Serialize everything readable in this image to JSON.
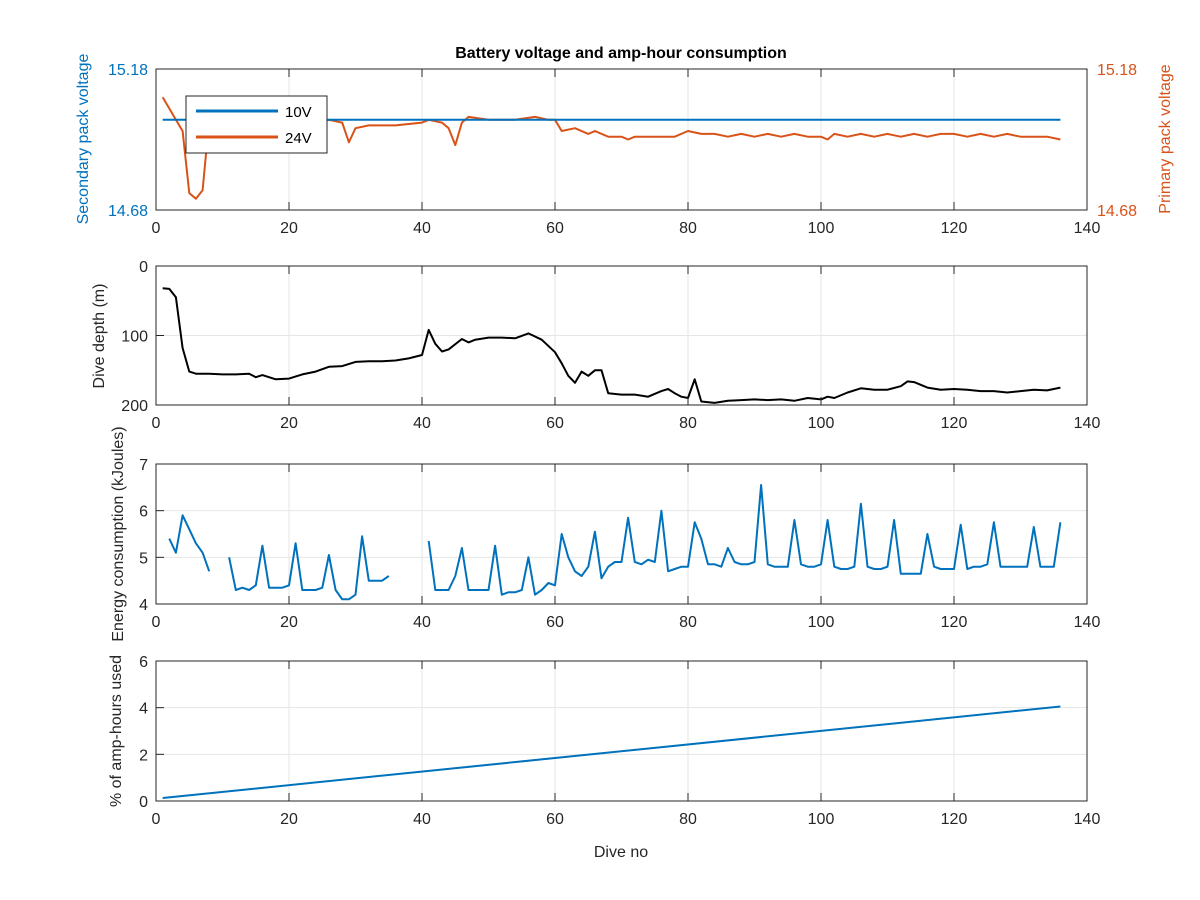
{
  "title": "Battery voltage and amp-hour consumption",
  "colors": {
    "blue": "#0072BD",
    "orange": "#D95319",
    "black": "#000000",
    "grid": "#e6e6e6",
    "axis": "#262626"
  },
  "chart_data": [
    {
      "type": "line",
      "title": "Battery voltage and amp-hour consumption",
      "xlabel": "",
      "ylabel_left": "Secondary pack voltage",
      "ylabel_right": "Primary pack voltage",
      "xlim": [
        0,
        140
      ],
      "ylim_left": [
        14.68,
        15.18
      ],
      "ylim_right": [
        14.68,
        15.18
      ],
      "xticks": [
        "0",
        "20",
        "40",
        "60",
        "80",
        "100",
        "120",
        "140"
      ],
      "yticks_left": [
        "14.68",
        "15.18"
      ],
      "yticks_right": [
        "14.68",
        "15.18"
      ],
      "grid": true,
      "legend_position": "top-left",
      "series": [
        {
          "name": "10V",
          "axis": "left",
          "color": "#0072BD",
          "x": [
            1,
            136
          ],
          "y": [
            15.0,
            15.0
          ]
        },
        {
          "name": "24V",
          "axis": "right",
          "color": "#D95319",
          "x": [
            1,
            2,
            3,
            4,
            5,
            6,
            7,
            8,
            9,
            10,
            14,
            18,
            22,
            24,
            26,
            28,
            29,
            30,
            32,
            36,
            40,
            41,
            43,
            44,
            45,
            46,
            47,
            50,
            54,
            57,
            59,
            60,
            61,
            63,
            65,
            66,
            68,
            70,
            71,
            72,
            74,
            76,
            78,
            80,
            82,
            84,
            86,
            88,
            90,
            92,
            94,
            96,
            98,
            100,
            101,
            102,
            104,
            106,
            108,
            110,
            112,
            114,
            116,
            118,
            120,
            122,
            124,
            126,
            128,
            130,
            132,
            134,
            136
          ],
          "y": [
            15.08,
            15.04,
            15.0,
            14.96,
            14.74,
            14.72,
            14.75,
            15.0,
            15.0,
            15.0,
            15.0,
            15.0,
            15.0,
            14.99,
            15.0,
            14.99,
            14.92,
            14.97,
            14.98,
            14.98,
            14.99,
            15.0,
            14.99,
            14.97,
            14.91,
            14.99,
            15.01,
            15.0,
            15.0,
            15.01,
            15.0,
            15.0,
            14.96,
            14.97,
            14.95,
            14.96,
            14.94,
            14.94,
            14.93,
            14.94,
            14.94,
            14.94,
            14.94,
            14.96,
            14.95,
            14.95,
            14.94,
            14.95,
            14.94,
            14.95,
            14.94,
            14.95,
            14.94,
            14.94,
            14.93,
            14.95,
            14.94,
            14.95,
            14.94,
            14.95,
            14.94,
            14.95,
            14.94,
            14.95,
            14.95,
            14.94,
            14.95,
            14.94,
            14.95,
            14.94,
            14.94,
            14.94,
            14.93
          ]
        }
      ]
    },
    {
      "type": "line",
      "xlabel": "",
      "ylabel": "Dive depth (m)",
      "xlim": [
        0,
        140
      ],
      "ylim": [
        0,
        200
      ],
      "y_reversed": true,
      "xticks": [
        "0",
        "20",
        "40",
        "60",
        "80",
        "100",
        "120",
        "140"
      ],
      "yticks": [
        "0",
        "100",
        "200"
      ],
      "grid": true,
      "series": [
        {
          "color": "#000000",
          "x": [
            1,
            2,
            3,
            4,
            5,
            6,
            8,
            10,
            12,
            14,
            15,
            16,
            18,
            20,
            22,
            24,
            26,
            28,
            30,
            32,
            34,
            36,
            38,
            40,
            41,
            42,
            43,
            44,
            46,
            47,
            48,
            50,
            52,
            54,
            56,
            58,
            60,
            61,
            62,
            63,
            64,
            65,
            66,
            67,
            68,
            70,
            72,
            74,
            76,
            77,
            78,
            79,
            80,
            81,
            82,
            84,
            86,
            88,
            90,
            92,
            94,
            96,
            98,
            100,
            101,
            102,
            104,
            106,
            108,
            110,
            112,
            113,
            114,
            116,
            118,
            120,
            122,
            124,
            126,
            128,
            130,
            132,
            134,
            136
          ],
          "y": [
            32,
            33,
            45,
            118,
            152,
            155,
            155,
            156,
            156,
            155,
            160,
            157,
            163,
            162,
            156,
            152,
            145,
            144,
            138,
            137,
            137,
            136,
            133,
            128,
            92,
            112,
            123,
            120,
            105,
            110,
            106,
            103,
            103,
            104,
            97,
            106,
            124,
            140,
            158,
            168,
            152,
            158,
            150,
            150,
            183,
            185,
            185,
            188,
            180,
            177,
            183,
            188,
            190,
            163,
            195,
            197,
            194,
            193,
            192,
            193,
            192,
            194,
            190,
            192,
            188,
            190,
            182,
            176,
            178,
            178,
            173,
            166,
            167,
            175,
            178,
            177,
            178,
            180,
            180,
            182,
            180,
            178,
            179,
            175
          ]
        }
      ]
    },
    {
      "type": "line",
      "xlabel": "",
      "ylabel": "Energy consumption (kJoules)",
      "xlim": [
        0,
        140
      ],
      "ylim": [
        4,
        7
      ],
      "xticks": [
        "0",
        "20",
        "40",
        "60",
        "80",
        "100",
        "120",
        "140"
      ],
      "yticks": [
        "4",
        "5",
        "6",
        "7"
      ],
      "grid": true,
      "series": [
        {
          "color": "#0072BD",
          "segments": [
            {
              "x": [
                2,
                3,
                4,
                5,
                6,
                7,
                8
              ],
              "y": [
                5.4,
                5.1,
                5.9,
                5.6,
                5.3,
                5.1,
                4.7
              ]
            },
            {
              "x": [
                11,
                12,
                13,
                14,
                15,
                16,
                17,
                18,
                19,
                20,
                21,
                22,
                23,
                24,
                25,
                26,
                27,
                28,
                29,
                30,
                31,
                32,
                33,
                34,
                35
              ],
              "y": [
                5.0,
                4.3,
                4.35,
                4.3,
                4.4,
                5.25,
                4.35,
                4.35,
                4.35,
                4.4,
                5.3,
                4.3,
                4.3,
                4.3,
                4.35,
                5.05,
                4.3,
                4.1,
                4.1,
                4.2,
                5.45,
                4.5,
                4.5,
                4.5,
                4.6
              ]
            },
            {
              "x": [
                41,
                42,
                43,
                44,
                45,
                46,
                47,
                48,
                49,
                50,
                51,
                52,
                53,
                54,
                55,
                56,
                57,
                58,
                59,
                60,
                61,
                62,
                63,
                64,
                65,
                66,
                67,
                68,
                69,
                70,
                71,
                72,
                73,
                74,
                75,
                76,
                77,
                78,
                79,
                80,
                81,
                82,
                83,
                84,
                85,
                86,
                87,
                88,
                89,
                90,
                91,
                92,
                93,
                94,
                95,
                96,
                97,
                98,
                99,
                100,
                101,
                102,
                103,
                104,
                105,
                106,
                107,
                108,
                109,
                110,
                111,
                112,
                113,
                114,
                115,
                116,
                117,
                118,
                119,
                120,
                121,
                122,
                123,
                124,
                125,
                126,
                127,
                128,
                129,
                130,
                131,
                132,
                133,
                134,
                135,
                136
              ],
              "y": [
                5.35,
                4.3,
                4.3,
                4.3,
                4.6,
                5.2,
                4.3,
                4.3,
                4.3,
                4.3,
                5.25,
                4.2,
                4.25,
                4.25,
                4.3,
                5.0,
                4.2,
                4.3,
                4.45,
                4.4,
                5.5,
                5.0,
                4.7,
                4.6,
                4.8,
                5.55,
                4.55,
                4.8,
                4.9,
                4.9,
                5.85,
                4.9,
                4.85,
                4.95,
                4.9,
                6.0,
                4.7,
                4.75,
                4.8,
                4.8,
                5.75,
                5.4,
                4.85,
                4.85,
                4.8,
                5.2,
                4.9,
                4.85,
                4.85,
                4.9,
                6.55,
                4.85,
                4.8,
                4.8,
                4.8,
                5.8,
                4.85,
                4.8,
                4.8,
                4.85,
                5.8,
                4.8,
                4.75,
                4.75,
                4.8,
                6.15,
                4.8,
                4.75,
                4.75,
                4.8,
                5.8,
                4.65,
                4.65,
                4.65,
                4.65,
                5.5,
                4.8,
                4.75,
                4.75,
                4.75,
                5.7,
                4.75,
                4.8,
                4.8,
                4.85,
                5.75,
                4.8,
                4.8,
                4.8,
                4.8,
                4.8,
                5.65,
                4.8,
                4.8,
                4.8,
                5.75
              ]
            }
          ]
        }
      ]
    },
    {
      "type": "line",
      "xlabel": "Dive no",
      "ylabel": "% of amp-hours used",
      "xlim": [
        0,
        140
      ],
      "ylim": [
        0,
        6
      ],
      "xticks": [
        "0",
        "20",
        "40",
        "60",
        "80",
        "100",
        "120",
        "140"
      ],
      "yticks": [
        "0",
        "2",
        "4",
        "6"
      ],
      "grid": true,
      "series": [
        {
          "color": "#0072BD",
          "x": [
            1,
            136
          ],
          "y": [
            0.13,
            4.05
          ]
        }
      ]
    }
  ]
}
